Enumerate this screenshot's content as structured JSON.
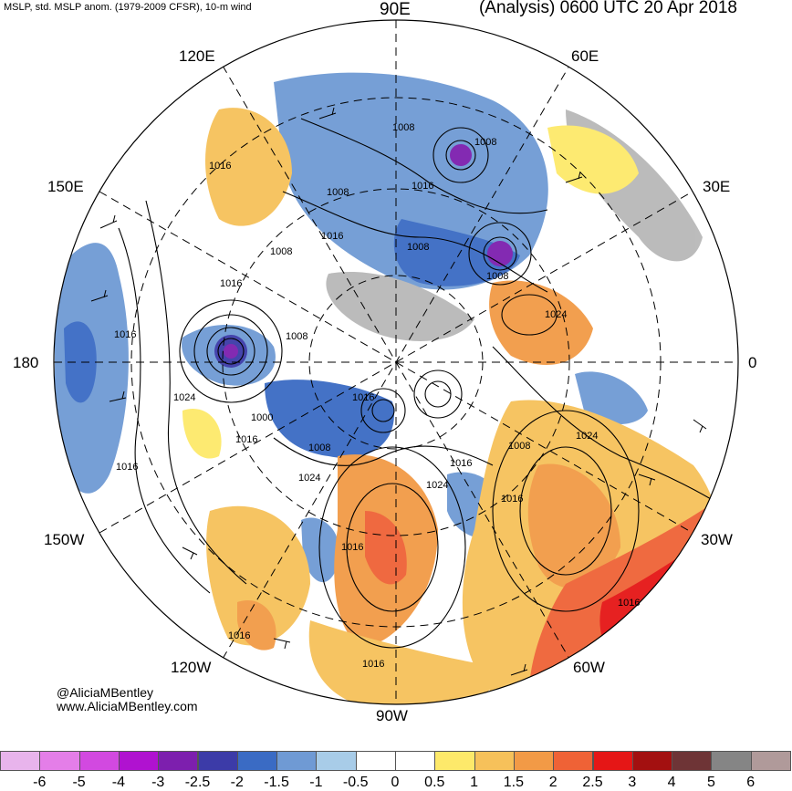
{
  "header": {
    "left_text": "MSLP, std. MSLP anom. (1979-2009 CFSR), 10-m wind",
    "right_text": "(Analysis) 0600 UTC 20 Apr 2018"
  },
  "longitude_labels": {
    "lon_90e": "90E",
    "lon_120e": "120E",
    "lon_60e": "60E",
    "lon_150e": "150E",
    "lon_30e": "30E",
    "lon_180": "180",
    "lon_0": "0",
    "lon_150w": "150W",
    "lon_30w": "30W",
    "lon_120w": "120W",
    "lon_60w": "60W",
    "lon_90w": "90W"
  },
  "isobar_labels": [
    "1008",
    "1008",
    "1016",
    "1008",
    "1016",
    "1008",
    "1008",
    "1008",
    "1016",
    "1016",
    "1008",
    "1024",
    "1024",
    "1016",
    "1000",
    "1016",
    "1008",
    "1016",
    "1008",
    "1024",
    "1016",
    "1024",
    "1016",
    "1016",
    "1016",
    "1016",
    "1016",
    "1016",
    "1024"
  ],
  "credits": {
    "handle": "@AliciaMBentley",
    "website": "www.AliciaMBentley.com"
  },
  "colorbar": {
    "colors": [
      "#e8b4ec",
      "#e47ee8",
      "#d249e0",
      "#b012d0",
      "#7d1fae",
      "#3c3ba8",
      "#3a6bc4",
      "#6f9ad4",
      "#a8cce8",
      "#ffffff",
      "#ffffff",
      "#fde96a",
      "#f6c15a",
      "#f29a46",
      "#ef6236",
      "#e51616",
      "#a31010",
      "#6e3436",
      "#858585",
      "#b09a9a"
    ],
    "tick_labels": [
      "-6",
      "-5",
      "-4",
      "-3",
      "-2.5",
      "-2",
      "-1.5",
      "-1",
      "-0.5",
      "0",
      "0.5",
      "1",
      "1.5",
      "2",
      "2.5",
      "3",
      "4",
      "5",
      "6"
    ]
  }
}
